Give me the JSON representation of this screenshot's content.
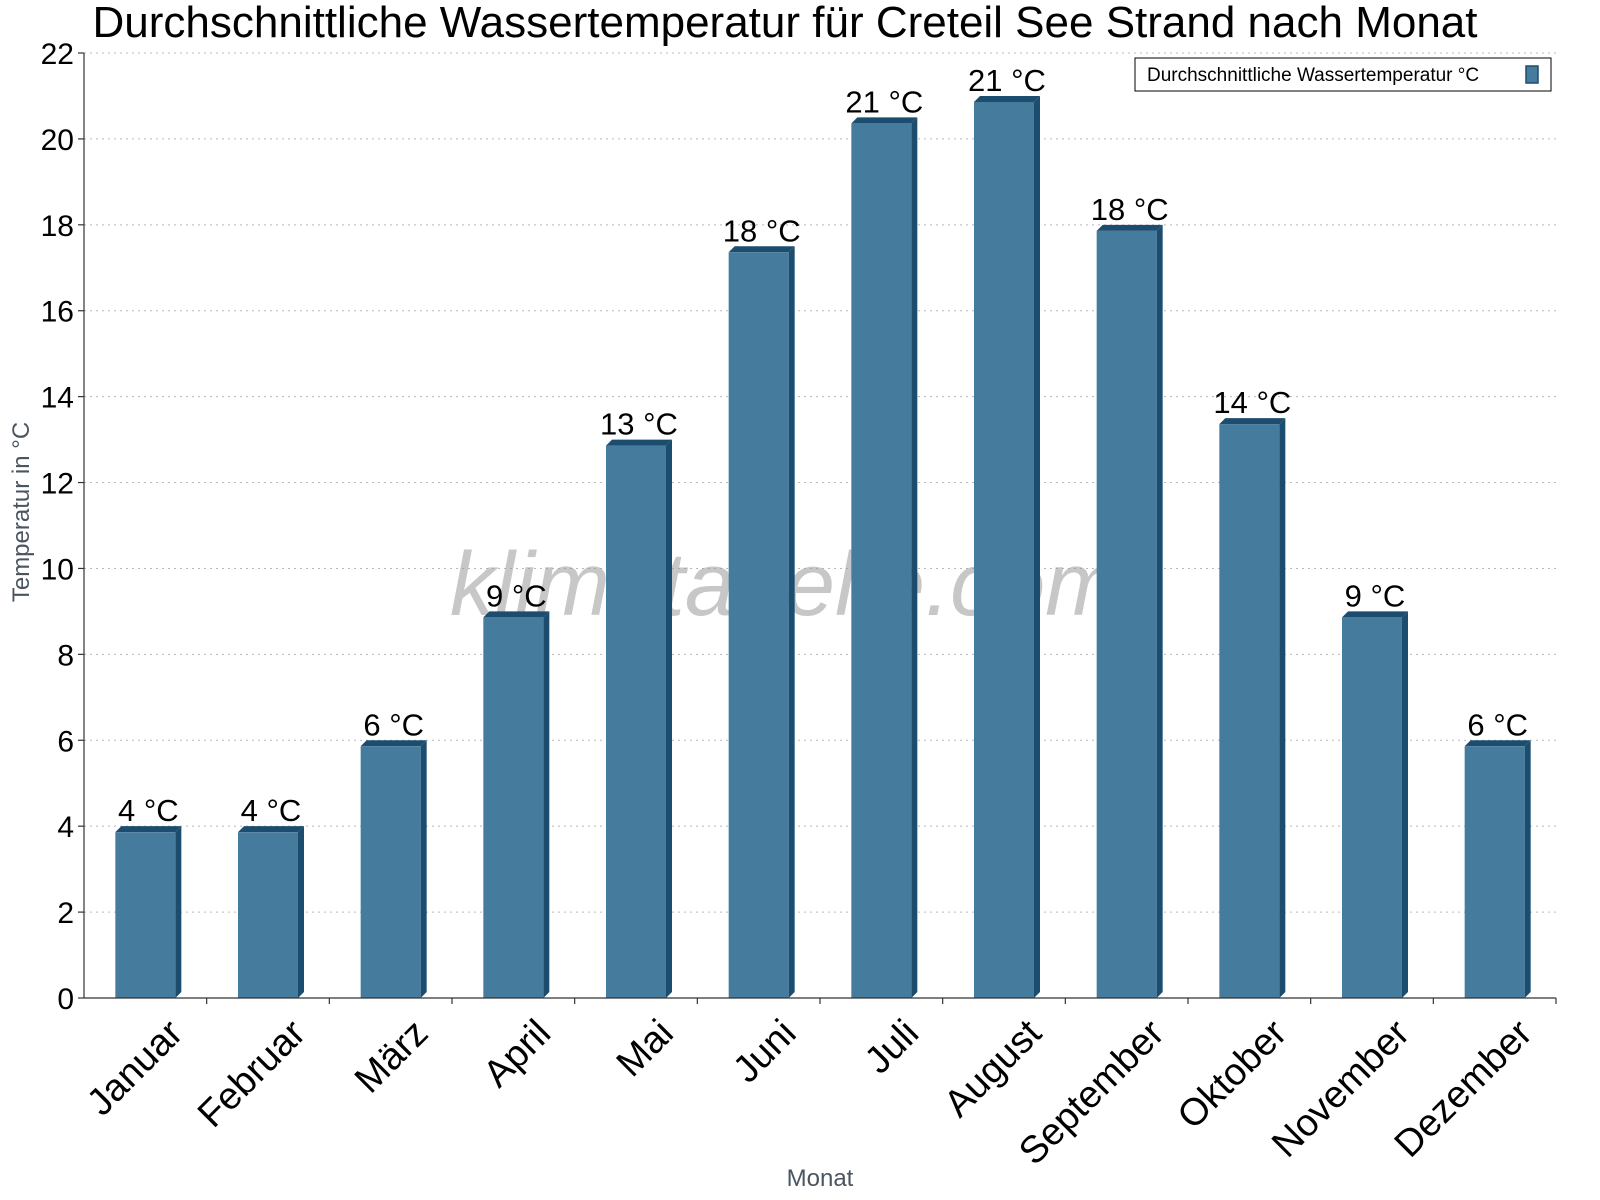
{
  "chart_data": {
    "type": "bar",
    "title": "Durchschnittliche Wassertemperatur für Creteil See Strand nach Monat",
    "xlabel": "Monat",
    "ylabel": "Temperatur in °C",
    "categories": [
      "Januar",
      "Februar",
      "März",
      "April",
      "Mai",
      "Juni",
      "Juli",
      "August",
      "September",
      "Oktober",
      "November",
      "Dezember"
    ],
    "series": [
      {
        "name": "Durchschnittliche Wassertemperatur °C",
        "values": [
          4,
          4,
          6,
          9,
          13,
          17.5,
          20.5,
          21,
          18,
          13.5,
          9,
          6
        ],
        "labels": [
          "4 °C",
          "4 °C",
          "6 °C",
          "9 °C",
          "13 °C",
          "18 °C",
          "21 °C",
          "21 °C",
          "18 °C",
          "14 °C",
          "9 °C",
          "6 °C"
        ],
        "color": "#457b9d",
        "side_color": "#1d4d6e"
      }
    ],
    "ylim": [
      0,
      22
    ],
    "yticks": [
      0,
      2,
      4,
      6,
      8,
      10,
      12,
      14,
      16,
      18,
      20,
      22
    ],
    "grid": true,
    "legend_position": "top-right"
  },
  "watermark": "klimatabelle.com"
}
